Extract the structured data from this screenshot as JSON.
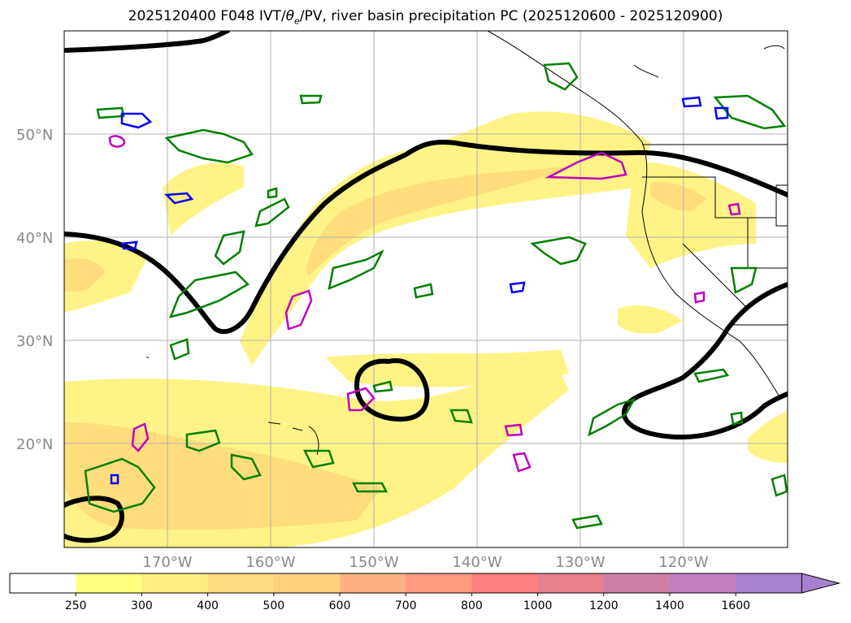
{
  "title": {
    "prefix": "2025120400 F048 IVT/",
    "theta": "θ",
    "theta_sub": "e",
    "suffix": "/PV, river basin precipitation PC (2025120600 - 2025120900)"
  },
  "map": {
    "lat_labels": [
      "50°N",
      "40°N",
      "30°N",
      "20°N"
    ],
    "lon_labels": [
      "170°W",
      "160°W",
      "150°W",
      "140°W",
      "130°W",
      "120°W"
    ],
    "colors": {
      "pv_contour": "#000000",
      "theta_e": "#008000",
      "blue_contour": "#0000ff",
      "magenta_contour": "#c000c0",
      "axis_label": "#888888"
    }
  },
  "colorbar": {
    "ticks": [
      "250",
      "300",
      "400",
      "500",
      "600",
      "700",
      "800",
      "1000",
      "1200",
      "1400",
      "1600"
    ],
    "colors": [
      "#ffffff",
      "#ffff80",
      "#ffee80",
      "#ffdd80",
      "#ffd080",
      "#ffb080",
      "#ff9a80",
      "#ff8080",
      "#e88090",
      "#d080a8",
      "#c080c0",
      "#a880d0"
    ]
  }
}
